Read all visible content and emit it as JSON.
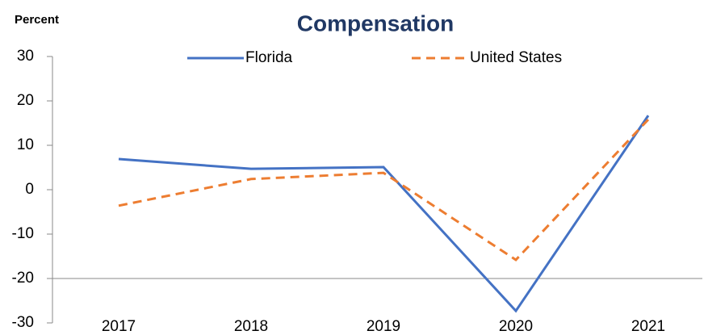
{
  "chart_data": {
    "type": "line",
    "title": "Compensation",
    "y_label": "Percent",
    "categories": [
      "2017",
      "2018",
      "2019",
      "2020",
      "2021"
    ],
    "series": [
      {
        "name": "Florida",
        "color": "#4472c4",
        "dash": false,
        "values": [
          6.9,
          4.7,
          5.1,
          -27.3,
          16.7
        ]
      },
      {
        "name": "United States",
        "color": "#ed7d31",
        "dash": true,
        "values": [
          -3.6,
          2.4,
          3.8,
          -15.8,
          15.8
        ]
      }
    ],
    "ylim": [
      -30,
      30
    ],
    "yticks": [
      -30,
      -20,
      -10,
      0,
      10,
      20,
      30
    ],
    "x_axis_crossing": -20,
    "grid": false
  }
}
